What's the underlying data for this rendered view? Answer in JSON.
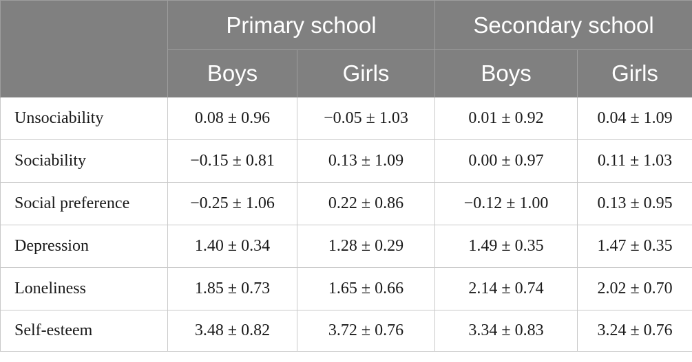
{
  "table": {
    "corner_label": "",
    "groups": [
      {
        "label": "Primary school",
        "subheaders": [
          "Boys",
          "Girls"
        ]
      },
      {
        "label": "Secondary school",
        "subheaders": [
          "Boys",
          "Girls"
        ]
      }
    ],
    "rows": [
      {
        "label": "Unsociability",
        "values": [
          "0.08 ± 0.96",
          "−0.05 ± 1.03",
          "0.01 ± 0.92",
          "0.04 ± 1.09"
        ]
      },
      {
        "label": "Sociability",
        "values": [
          "−0.15 ± 0.81",
          "0.13 ± 1.09",
          "0.00 ± 0.97",
          "0.11 ± 1.03"
        ]
      },
      {
        "label": "Social preference",
        "values": [
          "−0.25 ± 1.06",
          "0.22 ± 0.86",
          "−0.12 ± 1.00",
          "0.13 ± 0.95"
        ]
      },
      {
        "label": "Depression",
        "values": [
          "1.40 ± 0.34",
          "1.28 ± 0.29",
          "1.49 ± 0.35",
          "1.47 ± 0.35"
        ]
      },
      {
        "label": "Loneliness",
        "values": [
          "1.85 ± 0.73",
          "1.65 ± 0.66",
          "2.14 ± 0.74",
          "2.02 ± 0.70"
        ]
      },
      {
        "label": "Self-esteem",
        "values": [
          "3.48 ± 0.82",
          "3.72 ± 0.76",
          "3.34 ± 0.83",
          "3.24 ± 0.76"
        ]
      }
    ]
  }
}
